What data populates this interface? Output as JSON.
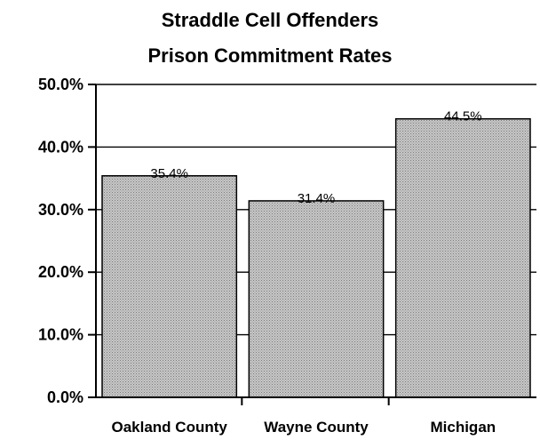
{
  "chart_data": {
    "type": "bar",
    "title": "Straddle Cell Offenders",
    "subtitle": "Prison Commitment Rates",
    "categories": [
      "Oakland County",
      "Wayne County",
      "Michigan"
    ],
    "values": [
      35.4,
      31.4,
      44.5
    ],
    "data_labels": [
      "35.4%",
      "31.4%",
      "44.5%"
    ],
    "ylim": [
      0,
      50
    ],
    "yticks": [
      0,
      10,
      20,
      30,
      40,
      50
    ],
    "ytick_labels": [
      "0.0%",
      "10.0%",
      "20.0%",
      "30.0%",
      "40.0%",
      "50.0%"
    ],
    "grid": true,
    "bar_color": "#b4b4b4",
    "xlabel": "",
    "ylabel": ""
  }
}
